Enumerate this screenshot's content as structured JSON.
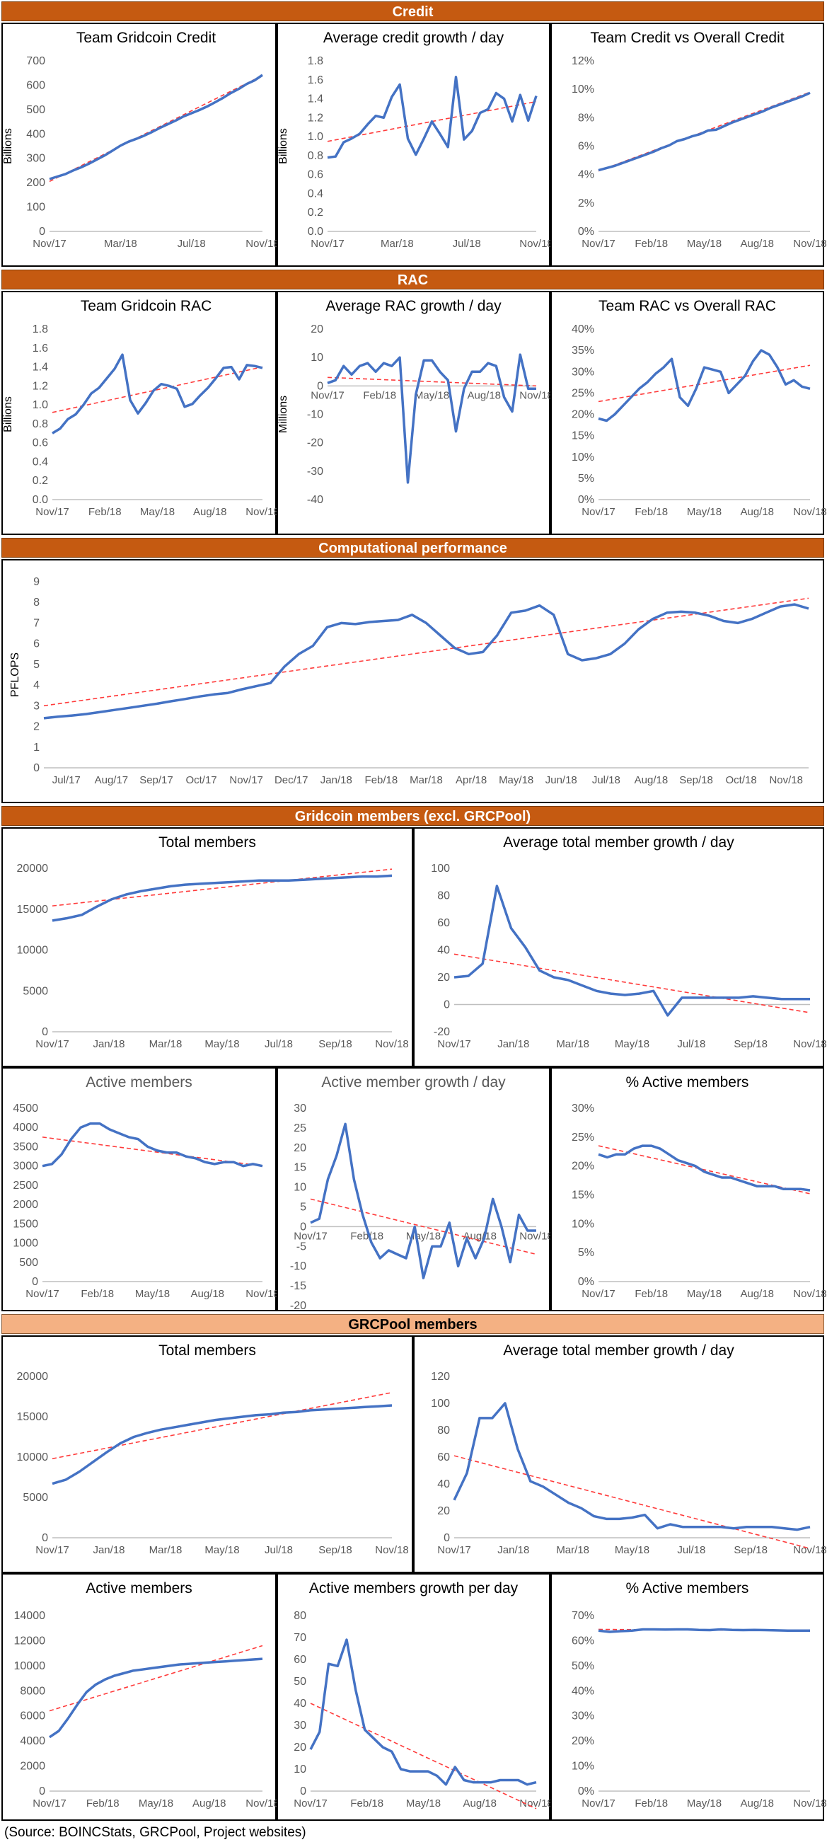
{
  "sections": {
    "credit": "Credit",
    "rac": "RAC",
    "comp": "Computational performance",
    "members": "Gridcoin members (excl. GRCPool)",
    "grcpool": "GRCPool members"
  },
  "source_note": "(Source: BOINCStats, GRCPool, Project websites)",
  "chart_data": [
    {
      "id": "c1",
      "type": "line",
      "title": "Team Gridcoin Credit",
      "ylabel": "Billions",
      "ylim": [
        0,
        700
      ],
      "yticks": [
        "0",
        "100",
        "200",
        "300",
        "400",
        "500",
        "600",
        "700"
      ],
      "xticks": [
        "Nov/17",
        "Mar/18",
        "Jul/18",
        "Nov/18"
      ],
      "series": [
        {
          "values": [
            215,
            225,
            235,
            250,
            263,
            278,
            295,
            312,
            332,
            352,
            368,
            380,
            393,
            408,
            425,
            440,
            455,
            472,
            485,
            498,
            513,
            530,
            548,
            568,
            585,
            605,
            620,
            642
          ]
        }
      ],
      "trend": [
        [
          0,
          205
        ],
        [
          1,
          640
        ]
      ]
    },
    {
      "id": "c2",
      "type": "line",
      "title": "Average credit growth / day",
      "ylabel": "Billions",
      "ylim": [
        0,
        1.8
      ],
      "yticks": [
        "0.0",
        "0.2",
        "0.4",
        "0.6",
        "0.8",
        "1.0",
        "1.2",
        "1.4",
        "1.6",
        "1.8"
      ],
      "xticks": [
        "Nov/17",
        "Mar/18",
        "Jul/18",
        "Nov/18"
      ],
      "series": [
        {
          "values": [
            0.78,
            0.79,
            0.94,
            0.98,
            1.03,
            1.13,
            1.22,
            1.2,
            1.42,
            1.55,
            0.98,
            0.81,
            0.98,
            1.16,
            1.03,
            0.89,
            1.63,
            0.97,
            1.06,
            1.25,
            1.29,
            1.46,
            1.4,
            1.16,
            1.44,
            1.17,
            1.43
          ]
        }
      ],
      "trend": [
        [
          0,
          0.95
        ],
        [
          1,
          1.37
        ]
      ]
    },
    {
      "id": "c3",
      "type": "line",
      "title": "Team Credit vs Overall Credit",
      "ylim": [
        0,
        12
      ],
      "yticks": [
        "0%",
        "2%",
        "4%",
        "6%",
        "8%",
        "10%",
        "12%"
      ],
      "xticks": [
        "Nov/17",
        "Feb/18",
        "May/18",
        "Aug/18",
        "Nov/18"
      ],
      "series": [
        {
          "values": [
            4.3,
            4.45,
            4.6,
            4.8,
            5.0,
            5.2,
            5.4,
            5.6,
            5.85,
            6.05,
            6.35,
            6.5,
            6.7,
            6.85,
            7.1,
            7.15,
            7.4,
            7.65,
            7.85,
            8.05,
            8.25,
            8.45,
            8.7,
            8.9,
            9.1,
            9.3,
            9.5,
            9.75
          ]
        }
      ],
      "trend": [
        [
          0,
          4.25
        ],
        [
          1,
          9.8
        ]
      ]
    },
    {
      "id": "c4",
      "type": "line",
      "title": "Team Gridcoin RAC",
      "ylabel": "Billions",
      "ylim": [
        0,
        1.8
      ],
      "yticks": [
        "0.0",
        "0.2",
        "0.4",
        "0.6",
        "0.8",
        "1.0",
        "1.2",
        "1.4",
        "1.6",
        "1.8"
      ],
      "xticks": [
        "Nov/17",
        "Feb/18",
        "May/18",
        "Aug/18",
        "Nov/18"
      ],
      "series": [
        {
          "values": [
            0.7,
            0.75,
            0.85,
            0.9,
            1.0,
            1.12,
            1.18,
            1.28,
            1.38,
            1.53,
            1.05,
            0.91,
            1.02,
            1.15,
            1.22,
            1.2,
            1.17,
            0.98,
            1.01,
            1.1,
            1.18,
            1.28,
            1.39,
            1.4,
            1.27,
            1.42,
            1.41,
            1.39
          ]
        }
      ],
      "trend": [
        [
          0,
          0.92
        ],
        [
          1,
          1.4
        ]
      ]
    },
    {
      "id": "c5",
      "type": "line",
      "title": "Average RAC growth / day",
      "ylabel": "Millions",
      "ylim": [
        -40,
        20
      ],
      "yticks": [
        "-40",
        "-30",
        "-20",
        "-10",
        "0",
        "10",
        "20"
      ],
      "xticks": [
        "Nov/17",
        "Feb/18",
        "May/18",
        "Aug/18",
        "Nov/18"
      ],
      "series": [
        {
          "values": [
            1,
            2,
            7,
            4,
            7,
            8,
            5,
            8,
            7,
            10,
            -34,
            -3,
            9,
            9,
            5,
            2,
            -16,
            -1,
            5,
            5,
            8,
            7,
            -4,
            -9,
            11,
            -1,
            -1
          ]
        }
      ],
      "trend": [
        [
          0,
          3
        ],
        [
          1,
          0
        ]
      ]
    },
    {
      "id": "c6",
      "type": "line",
      "title": "Team RAC vs Overall RAC",
      "ylim": [
        0,
        40
      ],
      "yticks": [
        "0%",
        "5%",
        "10%",
        "15%",
        "20%",
        "25%",
        "30%",
        "35%",
        "40%"
      ],
      "xticks": [
        "Nov/17",
        "Feb/18",
        "May/18",
        "Aug/18",
        "Nov/18"
      ],
      "series": [
        {
          "values": [
            19,
            18.5,
            20,
            22,
            24,
            26,
            27.5,
            29.5,
            31,
            33,
            24,
            22,
            26,
            31,
            30.5,
            30,
            25,
            27,
            29,
            32.5,
            35,
            34,
            31,
            27,
            28,
            26.5,
            26
          ]
        }
      ],
      "trend": [
        [
          0,
          23
        ],
        [
          1,
          31.5
        ]
      ]
    },
    {
      "id": "c7",
      "type": "line",
      "title": "",
      "ylabel": "PFLOPS",
      "ylim": [
        0,
        9
      ],
      "yticks": [
        "0",
        "1",
        "2",
        "3",
        "4",
        "5",
        "6",
        "7",
        "8",
        "9"
      ],
      "xticks": [
        "Jul/17",
        "Aug/17",
        "Sep/17",
        "Oct/17",
        "Nov/17",
        "Dec/17",
        "Jan/18",
        "Feb/18",
        "Mar/18",
        "Apr/18",
        "May/18",
        "Jun/18",
        "Jul/18",
        "Aug/18",
        "Sep/18",
        "Oct/18",
        "Nov/18"
      ],
      "series": [
        {
          "values": [
            2.4,
            2.47,
            2.53,
            2.6,
            2.7,
            2.8,
            2.9,
            3.0,
            3.1,
            3.22,
            3.33,
            3.45,
            3.55,
            3.62,
            3.8,
            3.95,
            4.1,
            4.9,
            5.5,
            5.9,
            6.8,
            7.0,
            6.95,
            7.05,
            7.1,
            7.15,
            7.4,
            7.0,
            6.4,
            5.8,
            5.5,
            5.6,
            6.4,
            7.5,
            7.6,
            7.85,
            7.4,
            5.5,
            5.2,
            5.3,
            5.5,
            6.0,
            6.7,
            7.2,
            7.5,
            7.55,
            7.5,
            7.35,
            7.1,
            7.0,
            7.2,
            7.5,
            7.8,
            7.9,
            7.7
          ]
        }
      ],
      "trend": [
        [
          0,
          3.0
        ],
        [
          1,
          8.2
        ]
      ]
    },
    {
      "id": "c8",
      "type": "line",
      "title": "Total members",
      "ylim": [
        0,
        20000
      ],
      "yticks": [
        "0",
        "5000",
        "10000",
        "15000",
        "20000"
      ],
      "xticks": [
        "Nov/17",
        "Jan/18",
        "Mar/18",
        "May/18",
        "Jul/18",
        "Sep/18",
        "Nov/18"
      ],
      "series": [
        {
          "values": [
            13600,
            13900,
            14300,
            15300,
            16200,
            16800,
            17200,
            17500,
            17800,
            18000,
            18100,
            18200,
            18300,
            18400,
            18500,
            18500,
            18500,
            18600,
            18700,
            18800,
            18900,
            19000,
            19000,
            19100
          ]
        }
      ],
      "trend": [
        [
          0,
          15400
        ],
        [
          1,
          19900
        ]
      ]
    },
    {
      "id": "c9",
      "type": "line",
      "title": "Average total member growth / day",
      "ylim": [
        -20,
        100
      ],
      "yticks": [
        "-20",
        "0",
        "20",
        "40",
        "60",
        "80",
        "100"
      ],
      "xticks": [
        "Nov/17",
        "Jan/18",
        "Mar/18",
        "May/18",
        "Jul/18",
        "Sep/18",
        "Nov/18"
      ],
      "series": [
        {
          "values": [
            20,
            21,
            30,
            87,
            56,
            42,
            25,
            20,
            18,
            14,
            10,
            8,
            7,
            8,
            10,
            -8,
            5,
            5,
            5,
            5,
            5,
            6,
            5,
            4,
            4,
            4
          ]
        }
      ],
      "trend": [
        [
          0,
          37
        ],
        [
          1,
          -6
        ]
      ]
    },
    {
      "id": "c10",
      "type": "line",
      "title": "Active members",
      "ylim": [
        0,
        4500
      ],
      "yticks": [
        "0",
        "500",
        "1000",
        "1500",
        "2000",
        "2500",
        "3000",
        "3500",
        "4000",
        "4500"
      ],
      "xticks": [
        "Nov/17",
        "Feb/18",
        "May/18",
        "Aug/18",
        "Nov/18"
      ],
      "series": [
        {
          "values": [
            3000,
            3050,
            3300,
            3700,
            4000,
            4100,
            4100,
            3950,
            3850,
            3750,
            3700,
            3500,
            3400,
            3350,
            3350,
            3250,
            3200,
            3100,
            3050,
            3100,
            3100,
            3000,
            3050,
            3000
          ]
        }
      ],
      "trend": [
        [
          0,
          3750
        ],
        [
          1,
          3000
        ]
      ]
    },
    {
      "id": "c11",
      "type": "line",
      "title": "Active member growth / day",
      "ylim": [
        -20,
        30
      ],
      "yticks": [
        "-20",
        "-15",
        "-10",
        "-5",
        "0",
        "5",
        "10",
        "15",
        "20",
        "25",
        "30"
      ],
      "xticks": [
        "Nov/17",
        "Feb/18",
        "May/18",
        "Aug/18",
        "Nov/18"
      ],
      "series": [
        {
          "values": [
            1,
            2,
            12,
            18,
            26,
            12,
            3,
            -4,
            -8,
            -6,
            -7,
            -8,
            0,
            -13,
            -5,
            -5,
            1,
            -10,
            -3,
            -8,
            -3,
            7,
            0,
            -9,
            3,
            -1,
            -1
          ]
        }
      ],
      "trend": [
        [
          0,
          7
        ],
        [
          1,
          -7
        ]
      ]
    },
    {
      "id": "c12",
      "type": "line",
      "title": "% Active members",
      "ylim": [
        0,
        30
      ],
      "yticks": [
        "0%",
        "5%",
        "10%",
        "15%",
        "20%",
        "25%",
        "30%"
      ],
      "xticks": [
        "Nov/17",
        "Feb/18",
        "May/18",
        "Aug/18",
        "Nov/18"
      ],
      "series": [
        {
          "values": [
            22,
            21.5,
            22,
            22,
            23,
            23.5,
            23.5,
            23,
            22,
            21,
            20.5,
            20,
            19,
            18.5,
            18,
            18,
            17.5,
            17,
            16.5,
            16.5,
            16.5,
            16,
            16,
            16,
            15.8
          ]
        }
      ],
      "trend": [
        [
          0,
          23.5
        ],
        [
          1,
          15.2
        ]
      ]
    },
    {
      "id": "c13",
      "type": "line",
      "title": "Total members",
      "ylim": [
        0,
        20000
      ],
      "yticks": [
        "0",
        "5000",
        "10000",
        "15000",
        "20000"
      ],
      "xticks": [
        "Nov/17",
        "Jan/18",
        "Mar/18",
        "May/18",
        "Jul/18",
        "Sep/18",
        "Nov/18"
      ],
      "series": [
        {
          "values": [
            6700,
            7200,
            8200,
            9400,
            10600,
            11700,
            12500,
            13000,
            13400,
            13700,
            14000,
            14300,
            14600,
            14800,
            15000,
            15200,
            15300,
            15500,
            15600,
            15800,
            15900,
            16000,
            16100,
            16200,
            16300,
            16400
          ]
        }
      ],
      "trend": [
        [
          0,
          9800
        ],
        [
          1,
          18000
        ]
      ]
    },
    {
      "id": "c14",
      "type": "line",
      "title": "Average total member growth / day",
      "ylim": [
        0,
        120
      ],
      "yticks": [
        "0",
        "20",
        "40",
        "60",
        "80",
        "100",
        "120"
      ],
      "xticks": [
        "Nov/17",
        "Jan/18",
        "Mar/18",
        "May/18",
        "Jul/18",
        "Sep/18",
        "Nov/18"
      ],
      "series": [
        {
          "values": [
            28,
            48,
            89,
            89,
            100,
            66,
            42,
            38,
            32,
            26,
            22,
            16,
            14,
            14,
            15,
            17,
            7,
            10,
            8,
            8,
            8,
            8,
            7,
            8,
            8,
            8,
            7,
            6,
            8
          ]
        }
      ],
      "trend": [
        [
          0,
          61
        ],
        [
          1,
          -8
        ]
      ]
    },
    {
      "id": "c15",
      "type": "line",
      "title": "Active members",
      "ylim": [
        0,
        14000
      ],
      "yticks": [
        "0",
        "2000",
        "4000",
        "6000",
        "8000",
        "10000",
        "12000",
        "14000"
      ],
      "xticks": [
        "Nov/17",
        "Feb/18",
        "May/18",
        "Aug/18",
        "Nov/18"
      ],
      "series": [
        {
          "values": [
            4300,
            4800,
            5800,
            6900,
            7900,
            8500,
            8900,
            9200,
            9400,
            9600,
            9700,
            9800,
            9900,
            10000,
            10100,
            10150,
            10200,
            10250,
            10300,
            10350,
            10400,
            10450,
            10500,
            10550
          ]
        }
      ],
      "trend": [
        [
          0,
          6400
        ],
        [
          1,
          11600
        ]
      ]
    },
    {
      "id": "c16",
      "type": "line",
      "title": "Active members growth per day",
      "ylim": [
        0,
        80
      ],
      "yticks": [
        "0",
        "10",
        "20",
        "30",
        "40",
        "50",
        "60",
        "70",
        "80"
      ],
      "xticks": [
        "Nov/17",
        "Feb/18",
        "May/18",
        "Aug/18",
        "Nov/18"
      ],
      "series": [
        {
          "values": [
            19,
            27,
            58,
            57,
            69,
            46,
            28,
            24,
            20,
            18,
            10,
            9,
            9,
            9,
            7,
            3,
            11,
            5,
            4,
            4,
            4,
            5,
            5,
            5,
            3,
            4
          ]
        }
      ],
      "trend": [
        [
          0,
          40
        ],
        [
          1,
          -8
        ]
      ]
    },
    {
      "id": "c17",
      "type": "line",
      "title": "% Active members",
      "ylim": [
        0,
        70
      ],
      "yticks": [
        "0%",
        "10%",
        "20%",
        "30%",
        "40%",
        "50%",
        "60%",
        "70%"
      ],
      "xticks": [
        "Nov/17",
        "Feb/18",
        "May/18",
        "Aug/18",
        "Nov/18"
      ],
      "series": [
        {
          "values": [
            64,
            63.5,
            63.8,
            64,
            64.5,
            64.5,
            64.4,
            64.5,
            64.5,
            64.3,
            64.2,
            64.5,
            64.3,
            64.2,
            64.3,
            64.2,
            64.1,
            64,
            64,
            64
          ]
        }
      ],
      "trend": [
        [
          0,
          64.5
        ],
        [
          1,
          64
        ]
      ]
    }
  ]
}
